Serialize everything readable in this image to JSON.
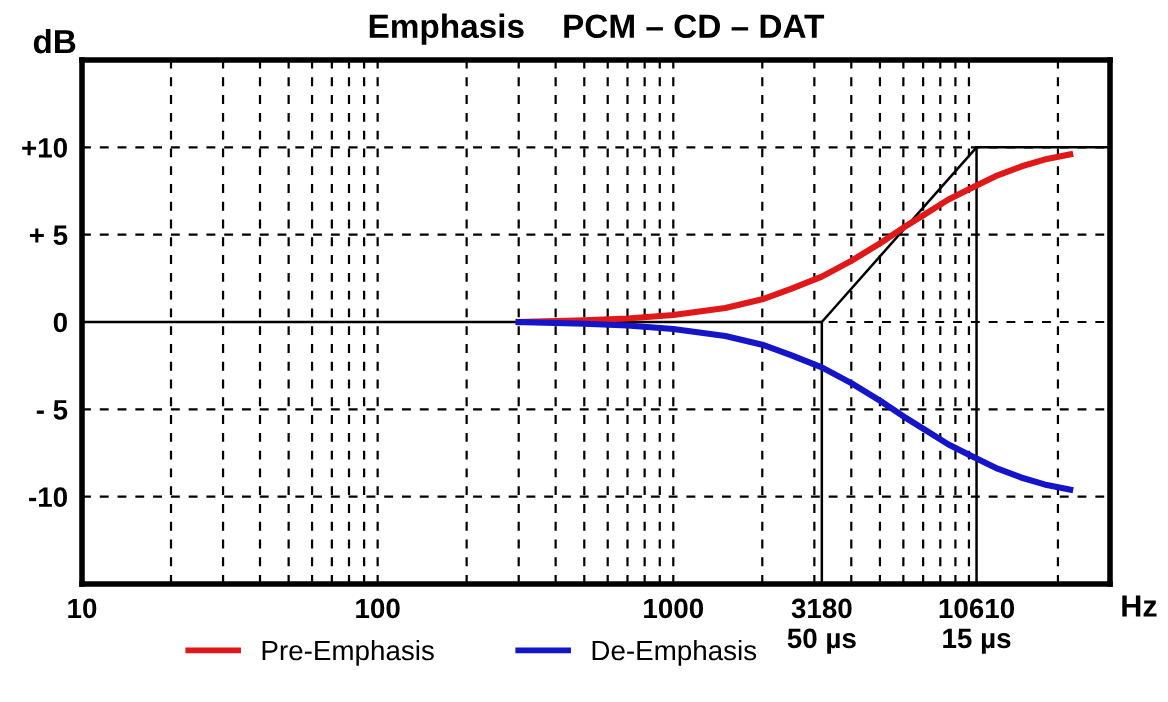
{
  "chart_data": {
    "type": "line",
    "title": "Emphasis    PCM – CD – DAT",
    "xlabel": "Hz",
    "ylabel": "dB",
    "log": "x",
    "grid": true,
    "legend": "bottom",
    "line_style": "solid",
    "marker": "none",
    "xlim": [
      10,
      30000
    ],
    "ylim": [
      -15,
      15
    ],
    "xticks": [
      10,
      100,
      1000,
      {
        "value": 3180,
        "label": "3180\n50 µs"
      },
      {
        "value": 10610,
        "label": "10610\n15 µs"
      }
    ],
    "yticks": [
      {
        "value": -10,
        "label": "-10"
      },
      {
        "value": -5,
        "label": "- 5"
      },
      0,
      {
        "value": 5,
        "label": "+ 5"
      },
      {
        "value": 10,
        "label": "+10"
      }
    ],
    "series": [
      {
        "color": "#000000",
        "x": [
          10,
          3180,
          10610,
          30000
        ],
        "values": [
          0,
          0,
          10,
          10
        ]
      },
      {
        "color": "#000000",
        "x": [
          3180,
          3180
        ],
        "values": [
          -15,
          0
        ]
      },
      {
        "color": "#000000",
        "x": [
          10610,
          10610
        ],
        "values": [
          -15,
          10
        ]
      },
      {
        "name": "Pre-Emphasis",
        "color": "#e01818",
        "x": [
          300,
          500,
          700,
          1000,
          1500,
          2000,
          2500,
          3180,
          4000,
          5000,
          6000,
          7000,
          8500,
          10000,
          12500,
          15000,
          18000,
          22000
        ],
        "values": [
          0.0,
          0.1,
          0.2,
          0.4,
          0.8,
          1.3,
          1.9,
          2.6,
          3.5,
          4.5,
          5.4,
          6.1,
          7.0,
          7.6,
          8.4,
          8.9,
          9.3,
          9.6
        ]
      },
      {
        "name": "De-Emphasis",
        "color": "#1414c8",
        "x": [
          300,
          500,
          700,
          1000,
          1500,
          2000,
          2500,
          3180,
          4000,
          5000,
          6000,
          7000,
          8500,
          10000,
          12500,
          15000,
          18000,
          22000
        ],
        "values": [
          0.0,
          -0.1,
          -0.2,
          -0.4,
          -0.8,
          -1.3,
          -1.9,
          -2.6,
          -3.5,
          -4.5,
          -5.4,
          -6.1,
          -7.0,
          -7.6,
          -8.4,
          -8.9,
          -9.3,
          -9.6
        ]
      }
    ]
  }
}
